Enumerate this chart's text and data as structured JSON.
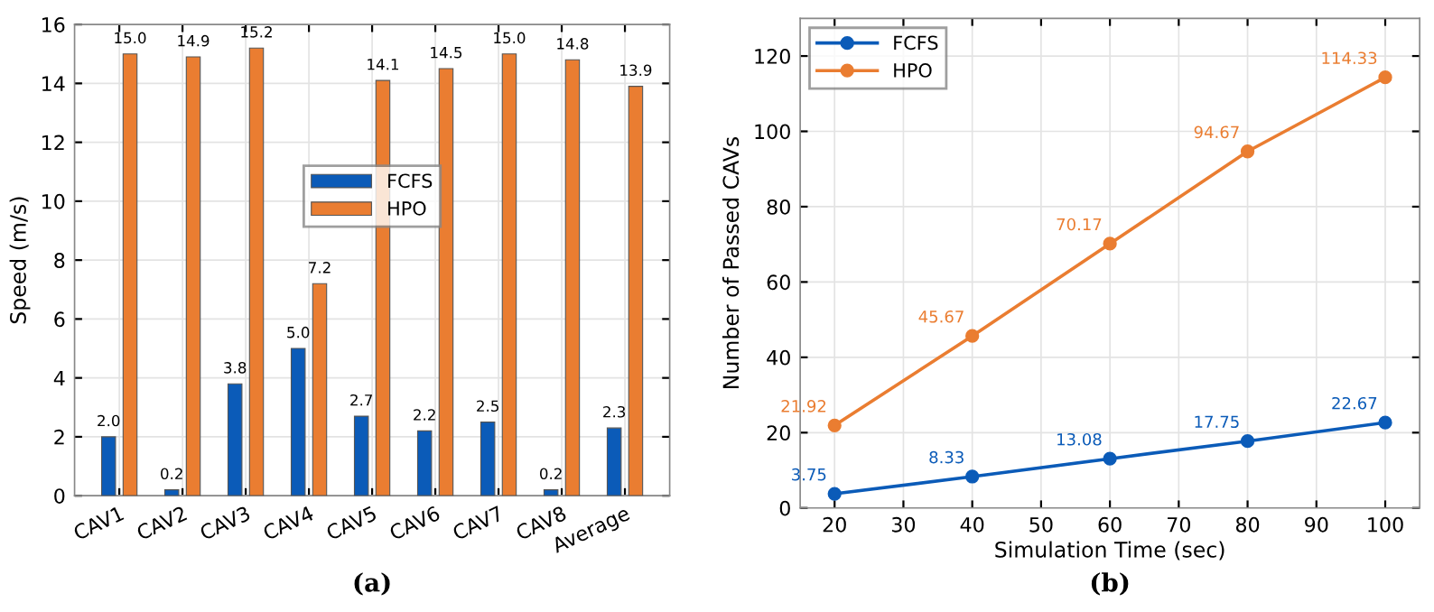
{
  "chart_data": [
    {
      "type": "bar",
      "ylabel": "Speed (m/s)",
      "categories": [
        "CAV1",
        "CAV2",
        "CAV3",
        "CAV4",
        "CAV5",
        "CAV6",
        "CAV7",
        "CAV8",
        "Average"
      ],
      "series": [
        {
          "name": "FCFS",
          "color": "#0b5bb8",
          "values": [
            2.0,
            0.2,
            3.8,
            5.0,
            2.7,
            2.2,
            2.5,
            0.2,
            2.3
          ],
          "value_labels": [
            "2.0",
            "0.2",
            "3.8",
            "5.0",
            "2.7",
            "2.2",
            "2.5",
            "0.2",
            "2.3"
          ]
        },
        {
          "name": "HPO",
          "color": "#ea7d31",
          "values": [
            15.0,
            14.9,
            15.2,
            7.2,
            14.1,
            14.5,
            15.0,
            14.8,
            13.9
          ],
          "value_labels": [
            "15.0",
            "14.9",
            "15.2",
            "7.2",
            "14.1",
            "14.5",
            "15.0",
            "14.8",
            "13.9"
          ]
        }
      ],
      "ylim": [
        0,
        16
      ],
      "yticks": [
        0,
        2,
        4,
        6,
        8,
        10,
        12,
        14,
        16
      ],
      "grid": true,
      "legend": "top",
      "annotations": [
        "(a)"
      ]
    },
    {
      "type": "line",
      "xlabel": "Simulation Time (sec)",
      "ylabel": "Number of Passed CAVs",
      "x": [
        20,
        40,
        60,
        80,
        100
      ],
      "series": [
        {
          "name": "FCFS",
          "color": "#0b5bb8",
          "values": [
            3.75,
            8.33,
            13.08,
            17.75,
            22.67
          ]
        },
        {
          "name": "HPO",
          "color": "#ea7d31",
          "values": [
            21.92,
            45.67,
            70.17,
            94.67,
            114.33
          ]
        }
      ],
      "xlim": [
        15,
        105
      ],
      "xticks": [
        20,
        30,
        40,
        50,
        60,
        70,
        80,
        90,
        100
      ],
      "ylim": [
        0,
        130
      ],
      "yticks": [
        0,
        20,
        40,
        60,
        80,
        100,
        120
      ],
      "grid": true,
      "legend": "top left",
      "marker": "circle",
      "line_style": "solid",
      "data_labels": true,
      "annotations": [
        "(b)"
      ]
    }
  ]
}
